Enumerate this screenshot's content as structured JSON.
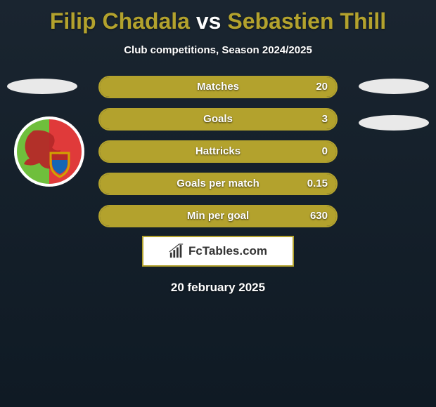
{
  "colors": {
    "title": "#b3a22d",
    "ellipse": "#e9e9e9",
    "bar_border": "#b3a22d",
    "bar_fill": "#b3a22d",
    "logo_border": "#b3a22d"
  },
  "title": {
    "player1": "Filip Chadala",
    "vs": "vs",
    "player2": "Sebastien Thill"
  },
  "subtitle": "Club competitions, Season 2024/2025",
  "bars": [
    {
      "label": "Matches",
      "value": "20",
      "fill_pct": 100
    },
    {
      "label": "Goals",
      "value": "3",
      "fill_pct": 100
    },
    {
      "label": "Hattricks",
      "value": "0",
      "fill_pct": 100
    },
    {
      "label": "Goals per match",
      "value": "0.15",
      "fill_pct": 100
    },
    {
      "label": "Min per goal",
      "value": "630",
      "fill_pct": 100
    }
  ],
  "logo": {
    "text": "FcTables.com"
  },
  "date": "20 february 2025",
  "crest": {
    "bg_left": "#6fbf3c",
    "bg_right": "#e03a3a",
    "shield_top": "#b52828",
    "shield_bottom": "#1566b5",
    "shield_border": "#d0a100"
  }
}
